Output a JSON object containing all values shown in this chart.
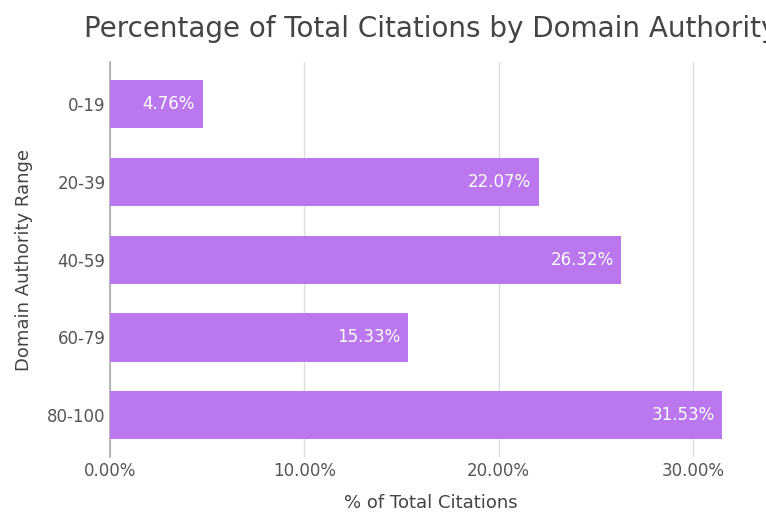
{
  "title": "Percentage of Total Citations by Domain Authority",
  "categories": [
    "80-100",
    "60-79",
    "40-59",
    "20-39",
    "0-19"
  ],
  "values": [
    31.53,
    15.33,
    26.32,
    22.07,
    4.76
  ],
  "bar_color": "#bb77ee",
  "label_color": "#ffffff",
  "xlabel": "% of Total Citations",
  "ylabel": "Domain Authority Range",
  "xlim": [
    0,
    33
  ],
  "xticks": [
    0,
    10,
    20,
    30
  ],
  "xtick_labels": [
    "0.00%",
    "10.00%",
    "20.00%",
    "30.00%"
  ],
  "title_fontsize": 20,
  "axis_label_fontsize": 13,
  "tick_fontsize": 12,
  "bar_label_fontsize": 12,
  "background_color": "#ffffff",
  "grid_color": "#dddddd",
  "title_color": "#444444",
  "axis_label_color": "#444444",
  "tick_color": "#555555"
}
